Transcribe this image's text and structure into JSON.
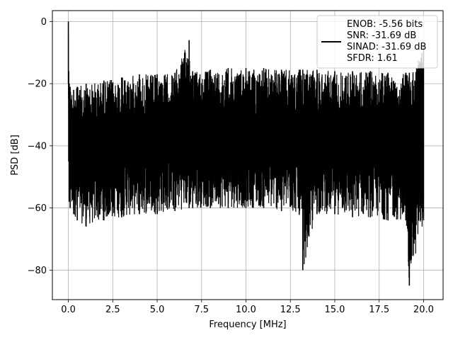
{
  "chart_data": {
    "type": "line",
    "title": "",
    "xlabel": "Frequency [MHz]",
    "ylabel": "PSD [dB]",
    "xlim": [
      -0.9,
      21.1
    ],
    "ylim": [
      -89.5,
      3.5
    ],
    "grid": true,
    "legend_placement": "top-right",
    "x_ticks": [
      0.0,
      2.5,
      5.0,
      7.5,
      10.0,
      12.5,
      15.0,
      17.5,
      20.0
    ],
    "x_tick_labels": [
      "0.0",
      "2.5",
      "5.0",
      "7.5",
      "10.0",
      "12.5",
      "15.0",
      "17.5",
      "20.0"
    ],
    "y_ticks": [
      0,
      -20,
      -40,
      -60,
      -80
    ],
    "y_tick_labels": [
      "0",
      "−20",
      "−40",
      "−60",
      "−80"
    ],
    "series": [
      {
        "color": "#000000",
        "x": [
          0.0,
          0.02,
          0.05,
          0.1,
          0.3,
          0.5,
          1.0,
          2.0,
          3.0,
          4.0,
          5.0,
          6.0,
          6.8,
          7.0,
          8.0,
          9.0,
          10.0,
          11.0,
          12.0,
          13.0,
          13.2,
          14.0,
          15.0,
          16.0,
          17.0,
          18.0,
          19.0,
          19.2,
          20.0
        ],
        "upper_envelope": [
          0,
          -16,
          -20,
          -21,
          -22,
          -21,
          -20,
          -19,
          -18,
          -17,
          -17,
          -16.5,
          -6,
          -16,
          -15.5,
          -15,
          -15,
          -15,
          -15.5,
          -15.5,
          -15.5,
          -15.5,
          -16,
          -16,
          -16,
          -16.5,
          -16.5,
          -16.5,
          -8
        ],
        "lower_envelope": [
          -20,
          -45,
          -58,
          -60,
          -62,
          -64,
          -66,
          -64,
          -63,
          -62,
          -62,
          -61,
          -60,
          -60,
          -60,
          -60,
          -60,
          -60,
          -61,
          -62,
          -80,
          -62,
          -62,
          -63,
          -63,
          -64,
          -64,
          -85,
          -64
        ]
      }
    ],
    "legend": [
      "ENOB: -5.56 bits",
      "SNR: -31.69 dB",
      "SINAD: -31.69 dB",
      "SFDR: 1.61"
    ]
  }
}
